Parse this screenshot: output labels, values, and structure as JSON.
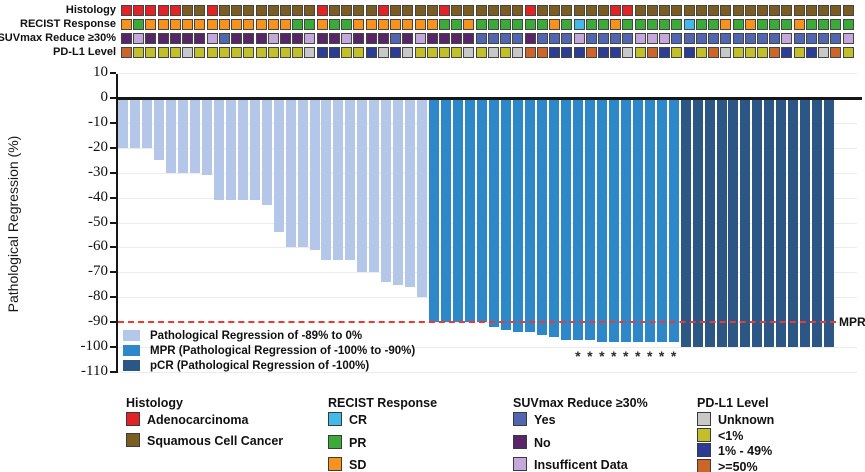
{
  "tracks": {
    "labels": [
      "Histology",
      "RECIST Response",
      "SUVmax Reduce ≥30%",
      "PD-L1 Level"
    ],
    "histology": [
      "A",
      "A",
      "A",
      "A",
      "A",
      "S",
      "S",
      "A",
      "S",
      "S",
      "S",
      "S",
      "S",
      "S",
      "S",
      "S",
      "A",
      "S",
      "S",
      "S",
      "S",
      "A",
      "S",
      "S",
      "S",
      "S",
      "A",
      "S",
      "S",
      "S",
      "S",
      "S",
      "S",
      "A",
      "S",
      "S",
      "S",
      "S",
      "S",
      "S",
      "A",
      "A",
      "S",
      "S",
      "S",
      "S",
      "S",
      "S",
      "S",
      "S",
      "S",
      "S",
      "S",
      "S",
      "S",
      "S",
      "S",
      "S",
      "S",
      "S"
    ],
    "recist": [
      "SD",
      "PR",
      "SD",
      "SD",
      "SD",
      "SD",
      "SD",
      "SD",
      "SD",
      "SD",
      "SD",
      "SD",
      "SD",
      "SD",
      "PR",
      "PR",
      "SD",
      "PR",
      "PR",
      "SD",
      "SD",
      "SD",
      "SD",
      "SD",
      "SD",
      "SD",
      "PR",
      "PR",
      "SD",
      "PR",
      "PR",
      "PR",
      "PR",
      "PR",
      "PR",
      "SD",
      "PR",
      "CR",
      "PR",
      "PR",
      "SD",
      "PR",
      "PR",
      "PR",
      "PR",
      "PR",
      "CR",
      "PR",
      "PR",
      "SD",
      "PR",
      "SD",
      "PR",
      "PR",
      "PR",
      "SD",
      "PR",
      "PR",
      "PR",
      "PR"
    ],
    "suvmax": [
      "N",
      "I",
      "N",
      "N",
      "N",
      "N",
      "N",
      "I",
      "Y",
      "N",
      "N",
      "N",
      "I",
      "N",
      "N",
      "I",
      "N",
      "N",
      "I",
      "N",
      "N",
      "N",
      "Y",
      "N",
      "I",
      "N",
      "N",
      "N",
      "N",
      "Y",
      "Y",
      "Y",
      "Y",
      "N",
      "Y",
      "Y",
      "Y",
      "I",
      "Y",
      "Y",
      "Y",
      "Y",
      "I",
      "I",
      "I",
      "Y",
      "Y",
      "Y",
      "Y",
      "Y",
      "Y",
      "Y",
      "Y",
      "Y",
      "I",
      "Y",
      "Y",
      "Y",
      "Y",
      "I"
    ],
    "pdl1": [
      "H",
      "L",
      "L",
      "L",
      "L",
      "U",
      "L",
      "L",
      "L",
      "L",
      "L",
      "L",
      "L",
      "L",
      "L",
      "U",
      "M",
      "M",
      "L",
      "L",
      "M",
      "U",
      "M",
      "U",
      "L",
      "L",
      "L",
      "L",
      "U",
      "L",
      "U",
      "L",
      "U",
      "H",
      "H",
      "M",
      "M",
      "M",
      "H",
      "M",
      "M",
      "U",
      "L",
      "H",
      "M",
      "L",
      "M",
      "L",
      "H",
      "U",
      "L",
      "L",
      "L",
      "H",
      "M",
      "L",
      "M",
      "U",
      "H",
      "L"
    ]
  },
  "colors": {
    "histology": {
      "A": "#e32225",
      "S": "#7b5c21"
    },
    "recist": {
      "CR": "#41b9e9",
      "PR": "#3caa38",
      "SD": "#f6921e"
    },
    "suvmax": {
      "Y": "#5166b1",
      "N": "#582568",
      "I": "#c5a8db"
    },
    "pdl1": {
      "U": "#c8c8c8",
      "L": "#c1c02a",
      "M": "#2d3d96",
      "H": "#cb6529"
    },
    "bar_reg": "#b5c7e9",
    "bar_mpr": "#2e87c8",
    "bar_pcr": "#2c5784",
    "mpr_line": "#ea3b30"
  },
  "chart_data": {
    "type": "bar",
    "title": "",
    "xlabel": "",
    "ylabel": "Pathological Regression (%)",
    "ylim": [
      -110,
      10
    ],
    "yticks": [
      10,
      0,
      -10,
      -20,
      -30,
      -40,
      -50,
      -60,
      -70,
      -80,
      -90,
      -100,
      -110
    ],
    "grid": "horizontal-light",
    "n_patients": 60,
    "values": [
      -20,
      -20,
      -20,
      -25,
      -30,
      -30,
      -30,
      -31,
      -41,
      -41,
      -41,
      -41,
      -43,
      -54,
      -60,
      -60,
      -61,
      -65,
      -65,
      -65,
      -70,
      -70,
      -74,
      -75,
      -76,
      -80,
      -90,
      -90,
      -90,
      -90,
      -90,
      -92,
      -93,
      -94,
      -94,
      -95,
      -96,
      -97,
      -97,
      -97,
      -98,
      -98,
      -98,
      -98,
      -98,
      -98,
      -98,
      -100,
      -100,
      -100,
      -100,
      -100,
      -100,
      -100,
      -100,
      -100,
      -100,
      -100,
      -100,
      -100
    ],
    "groups": [
      "reg",
      "reg",
      "reg",
      "reg",
      "reg",
      "reg",
      "reg",
      "reg",
      "reg",
      "reg",
      "reg",
      "reg",
      "reg",
      "reg",
      "reg",
      "reg",
      "reg",
      "reg",
      "reg",
      "reg",
      "reg",
      "reg",
      "reg",
      "reg",
      "reg",
      "reg",
      "mpr",
      "mpr",
      "mpr",
      "mpr",
      "mpr",
      "mpr",
      "mpr",
      "mpr",
      "mpr",
      "mpr",
      "mpr",
      "mpr",
      "mpr",
      "mpr",
      "mpr",
      "mpr",
      "mpr",
      "mpr",
      "mpr",
      "mpr",
      "mpr",
      "pcr",
      "pcr",
      "pcr",
      "pcr",
      "pcr",
      "pcr",
      "pcr",
      "pcr",
      "pcr",
      "pcr",
      "pcr",
      "pcr",
      "pcr"
    ],
    "asterisk_indices": [
      38,
      39,
      40,
      41,
      42,
      43,
      44,
      45,
      46
    ],
    "asterisk_marker": "*",
    "mpr_threshold": -90,
    "mpr_annotation": "MPR"
  },
  "chart_legend": [
    {
      "key": "bar_reg",
      "label": "Pathological Regression of -89% to 0%"
    },
    {
      "key": "bar_mpr",
      "label": "MPR (Pathological Regression of -100% to -90%)"
    },
    {
      "key": "bar_pcr",
      "label": "pCR (Pathological Regression of -100%)"
    }
  ],
  "bottom_legend": [
    {
      "title": "Histology",
      "items": [
        {
          "label": "Adenocarcinoma",
          "color": "#e32225"
        },
        {
          "label": "Squamous Cell Cancer",
          "color": "#7b5c21"
        }
      ]
    },
    {
      "title": "RECIST Response",
      "items": [
        {
          "label": "CR",
          "color": "#41b9e9"
        },
        {
          "label": "PR",
          "color": "#3caa38"
        },
        {
          "label": "SD",
          "color": "#f6921e"
        }
      ]
    },
    {
      "title": "SUVmax Reduce ≥30%",
      "items": [
        {
          "label": "Yes",
          "color": "#5166b1"
        },
        {
          "label": "No",
          "color": "#582568"
        },
        {
          "label": "Insufficent Data",
          "color": "#c5a8db"
        }
      ]
    },
    {
      "title": "PD-L1 Level",
      "items": [
        {
          "label": "Unknown",
          "color": "#c8c8c8"
        },
        {
          "label": "<1%",
          "color": "#c1c02a"
        },
        {
          "label": "1% - 49%",
          "color": "#2d3d96"
        },
        {
          "label": ">=50%",
          "color": "#cb6529"
        }
      ]
    }
  ]
}
